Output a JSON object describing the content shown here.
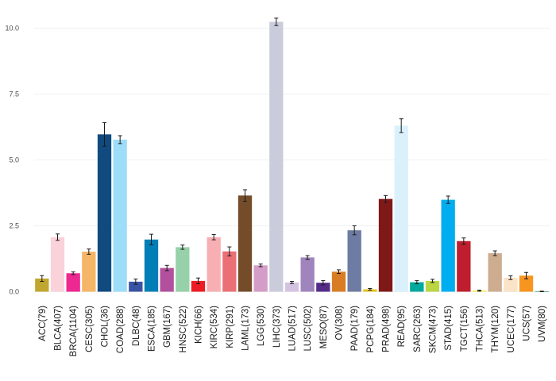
{
  "chart_data": {
    "type": "bar",
    "title": "",
    "xlabel": "",
    "ylabel": "",
    "ylim": [
      0,
      10.4
    ],
    "yticks": [
      0,
      2.5,
      5,
      7.5,
      10
    ],
    "ytick_labels": [
      "0.0",
      "2.5",
      "5.0",
      "7.5",
      "10.0"
    ],
    "grid": true,
    "categories": [
      "ACC(79)",
      "BLCA(407)",
      "BRCA(1104)",
      "CESC(305)",
      "CHOL(36)",
      "COAD(288)",
      "DLBC(48)",
      "ESCA(185)",
      "GBM(167)",
      "HNSC(522)",
      "KICH(66)",
      "KIRC(534)",
      "KIRP(291)",
      "LAML(173)",
      "LGG(530)",
      "LIHC(373)",
      "LUAD(517)",
      "LUSC(502)",
      "MESO(87)",
      "OV(308)",
      "PAAD(179)",
      "PCPG(184)",
      "PRAD(498)",
      "READ(95)",
      "SARC(263)",
      "SKCM(473)",
      "STAD(415)",
      "TGCT(156)",
      "THCA(513)",
      "THYM(120)",
      "UCEC(177)",
      "UCS(57)",
      "UVM(80)"
    ],
    "values": [
      0.5,
      2.07,
      0.7,
      1.52,
      5.97,
      5.77,
      0.38,
      1.98,
      0.9,
      1.69,
      0.41,
      2.07,
      1.53,
      3.65,
      1.0,
      10.24,
      0.35,
      1.3,
      0.34,
      0.76,
      2.33,
      0.09,
      3.52,
      6.3,
      0.36,
      0.41,
      3.49,
      1.92,
      0.04,
      1.46,
      0.53,
      0.61,
      0.01
    ],
    "errors": [
      0.11,
      0.12,
      0.05,
      0.1,
      0.45,
      0.15,
      0.1,
      0.2,
      0.1,
      0.08,
      0.11,
      0.1,
      0.17,
      0.22,
      0.05,
      0.14,
      0.04,
      0.07,
      0.08,
      0.07,
      0.17,
      0.03,
      0.13,
      0.26,
      0.06,
      0.06,
      0.14,
      0.12,
      0.02,
      0.09,
      0.07,
      0.12,
      0.01
    ],
    "colors": [
      "#C1A72F",
      "#FAD2D9",
      "#ED2891",
      "#F6B667",
      "#104A7F",
      "#9EDDF9",
      "#3953A4",
      "#007EB5",
      "#B2509E",
      "#97D1A9",
      "#ED1C24",
      "#F8AFB3",
      "#EA7075",
      "#754C29",
      "#D49DC7",
      "#CACCDB",
      "#D3C3E0",
      "#A084BD",
      "#542C88",
      "#D97D25",
      "#6E7BA2",
      "#E8C51D",
      "#7E1918",
      "#DAF1FC",
      "#00A99D",
      "#BBD642",
      "#00AEEF",
      "#BE1E2D",
      "#F9ED32",
      "#CEAC8F",
      "#FBE3C7",
      "#F89420",
      "#009444"
    ]
  }
}
